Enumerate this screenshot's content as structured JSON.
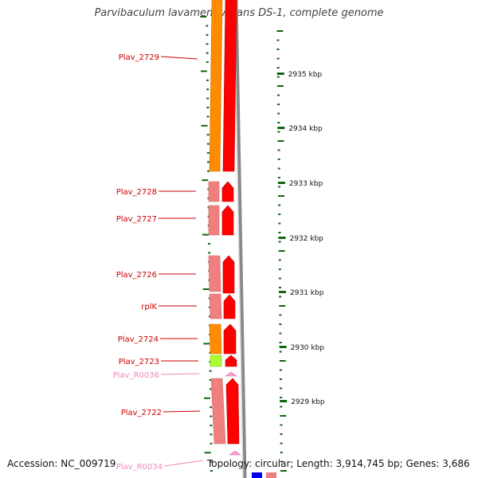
{
  "title": "Parvibaculum lavamentivorans DS-1, complete genome",
  "footer": {
    "accession": "Accession: NC_009719",
    "topology": "Topology: circular; Length: 3,914,745 bp; Genes: 3,686"
  },
  "colors": {
    "label_red": "#cc0000",
    "label_pink": "#ee88bb",
    "orange": "#ff8c00",
    "red": "#ff0000",
    "salmon": "#f08080",
    "lime": "#aaff33",
    "pink": "#ff99cc",
    "blue": "#0000ee",
    "tick_green": "#116611"
  },
  "kbp_labels": [
    "2935 kbp",
    "2934 kbp",
    "2933 kbp",
    "2932 kbp",
    "2931 kbp",
    "2930 kbp",
    "2929 kbp"
  ],
  "gene_labels": [
    "Plav_2729",
    "Plav_2728",
    "Plav_2727",
    "Plav_2726",
    "rplK",
    "Plav_2724",
    "Plav_2723",
    "Plav_R0036",
    "Plav_2722",
    "Plav_R0034"
  ]
}
